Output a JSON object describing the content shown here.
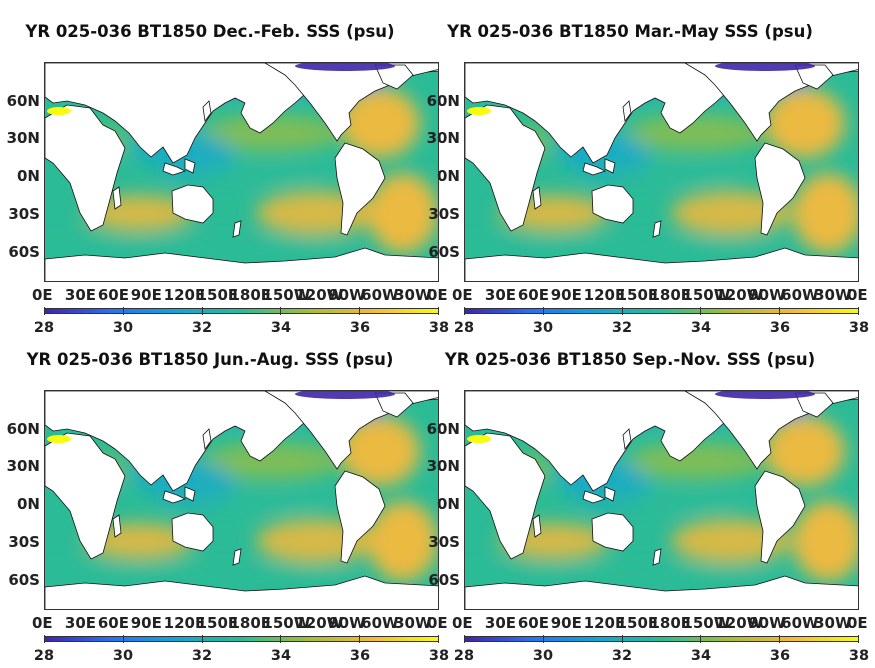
{
  "panels": [
    {
      "title": "YR 025-036 BT1850 Dec.-Feb. SSS (psu)"
    },
    {
      "title": "YR 025-036 BT1850 Mar.-May SSS (psu)"
    },
    {
      "title": "YR 025-036 BT1850 Jun.-Aug. SSS (psu)"
    },
    {
      "title": "YR 025-036 BT1850 Sep.-Nov. SSS (psu)"
    }
  ],
  "lat_labels": [
    "60N",
    "30N",
    "0N",
    "30S",
    "60S"
  ],
  "lon_labels": [
    "0E",
    "30E",
    "60E",
    "90E",
    "120E",
    "150E",
    "180E",
    "150W",
    "120W",
    "90W",
    "60W",
    "30W",
    "0E"
  ],
  "colorbar": {
    "min": 28,
    "max": 38,
    "ticks": [
      "28",
      "30",
      "32",
      "34",
      "36",
      "38"
    ],
    "colormap": "parula",
    "colors": [
      "#3e26a8",
      "#2d6ef4",
      "#14a5d6",
      "#2bbb97",
      "#a3bd3a",
      "#f5b93b",
      "#f9fb0e"
    ]
  },
  "land_color": "#ffffff",
  "ocean_base_color": "#4fb5a0"
}
